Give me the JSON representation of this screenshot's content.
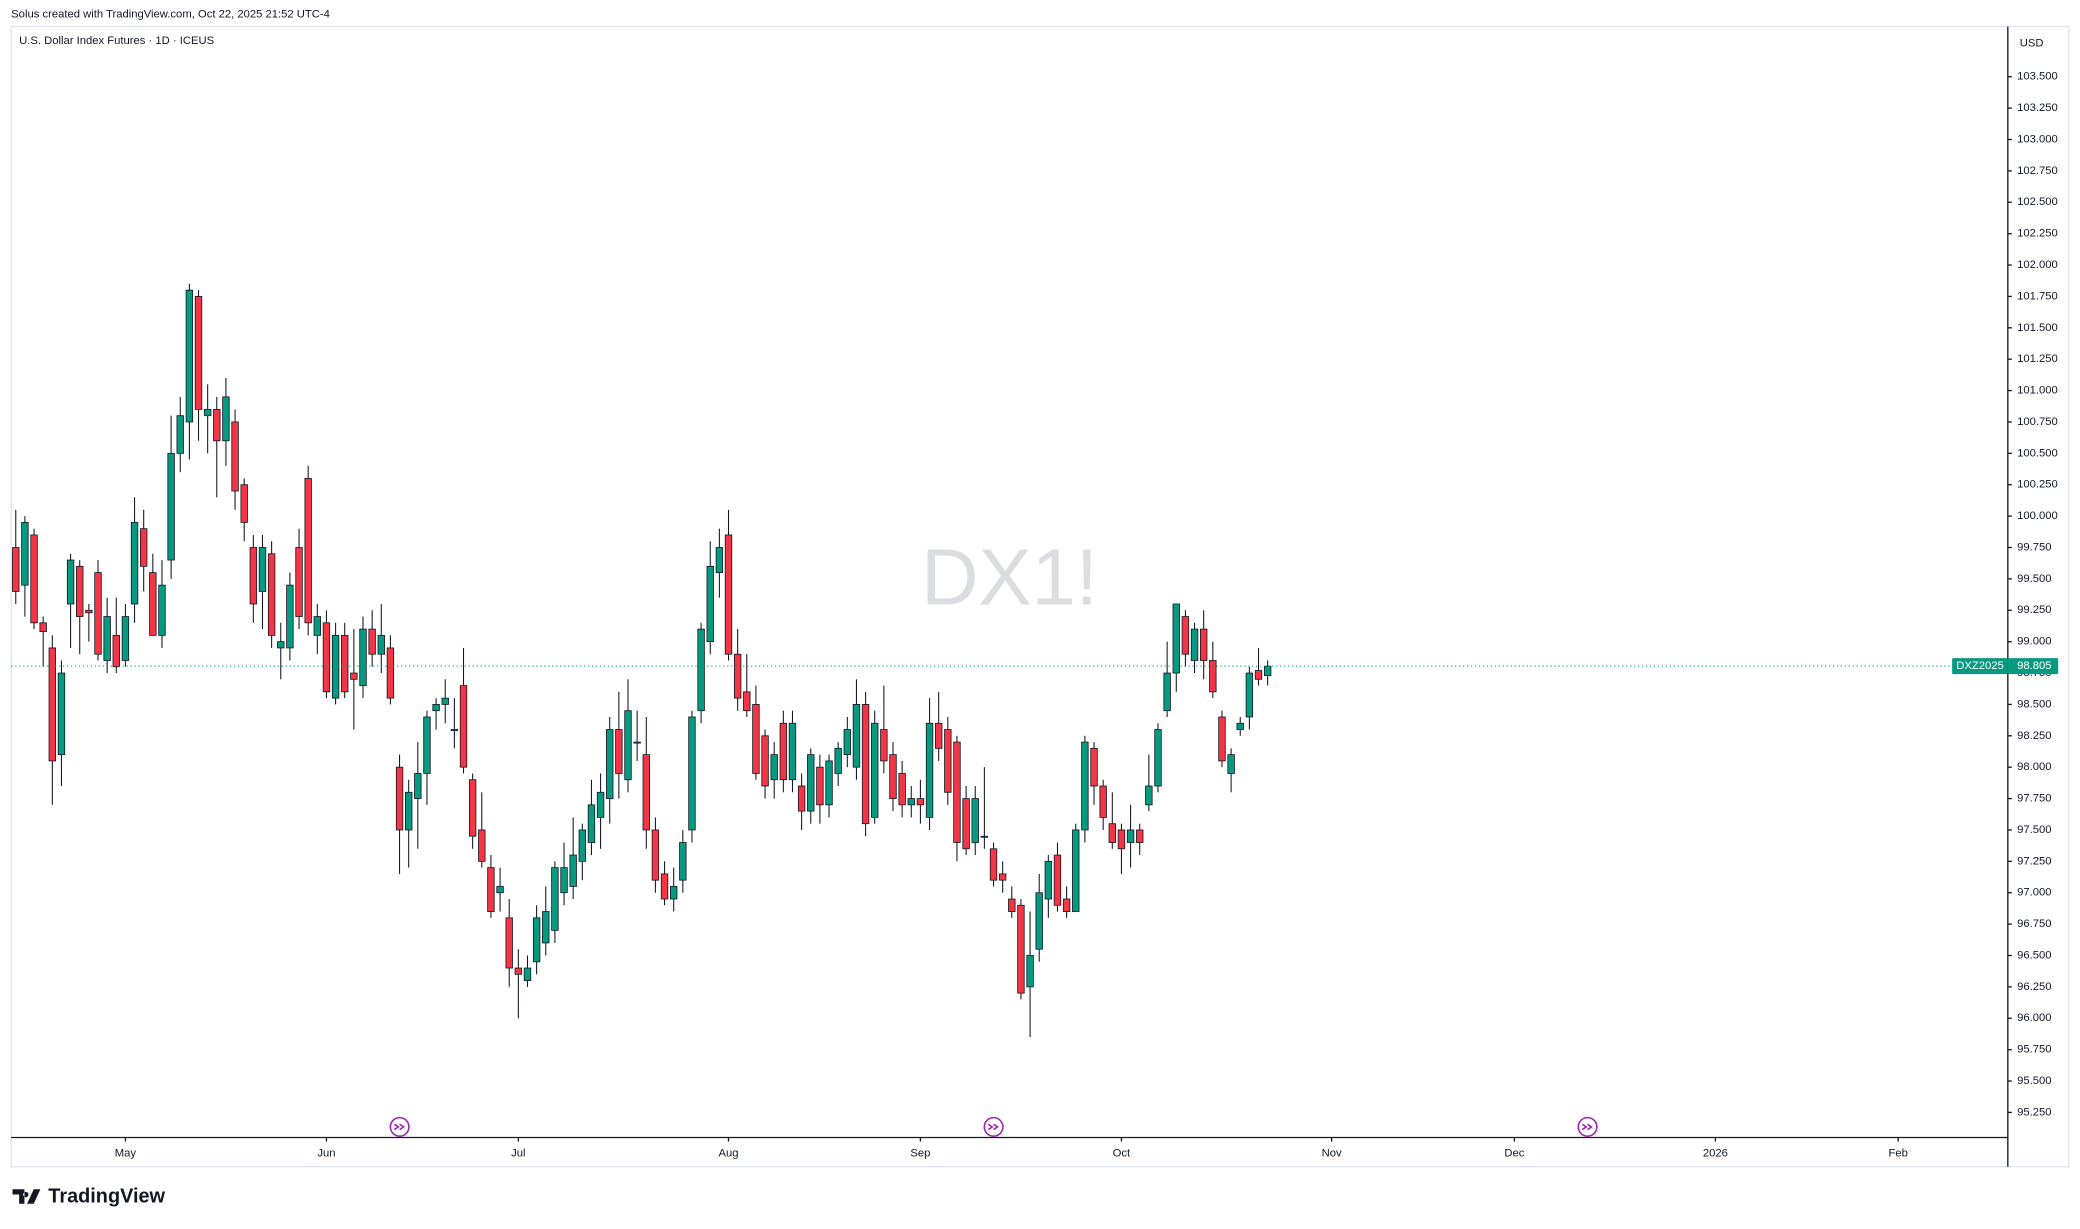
{
  "chart_data": {
    "type": "candlestick",
    "credit": "Solus created with TradingView.com, Oct 22, 2025 21:52 UTC-4",
    "title": "U.S. Dollar Index Futures · 1D · ICEUS",
    "watermark": "DX1!",
    "currency": "USD",
    "brand": "TradingView",
    "last_price_symbol": "DXZ2025",
    "last_price": 98.805,
    "up_color": "#089981",
    "down_color": "#f23645",
    "grid": false,
    "open": [
      99.75,
      99.45,
      99.85,
      99.15,
      98.95,
      98.1,
      99.3,
      99.6,
      99.25,
      99.55,
      98.85,
      99.05,
      98.85,
      99.3,
      99.9,
      99.55,
      99.05,
      99.65,
      100.5,
      100.75,
      101.75,
      100.8,
      100.85,
      100.6,
      100.75,
      100.25,
      99.75,
      99.4,
      99.7,
      98.95,
      98.95,
      99.75,
      100.3,
      99.05,
      99.15,
      98.55,
      99.05,
      98.75,
      98.65,
      99.1,
      98.9,
      98.95,
      98,
      97.5,
      97.75,
      97.95,
      98.45,
      98.5,
      98.3,
      98.65,
      97.9,
      97.5,
      97.2,
      97,
      96.8,
      96.4,
      96.3,
      96.45,
      96.6,
      96.7,
      97,
      97.05,
      97.25,
      97.4,
      97.6,
      97.75,
      98.3,
      97.9,
      98.2,
      98.1,
      97.5,
      97.15,
      96.95,
      97.1,
      97.5,
      98.45,
      99,
      99.55,
      99.85,
      98.9,
      98.6,
      98.5,
      98.25,
      97.9,
      98.35,
      97.9,
      97.85,
      97.65,
      98,
      97.7,
      97.95,
      98.1,
      98,
      98.5,
      97.6,
      98.3,
      98.1,
      97.95,
      97.7,
      97.75,
      97.6,
      98.35,
      98.3,
      98.2,
      97.75,
      97.4,
      97.45,
      97.35,
      97.15,
      96.95,
      96.9,
      96.25,
      96.55,
      96.95,
      97.3,
      96.95,
      96.85,
      97.5,
      98.15,
      97.85,
      97.55,
      97.5,
      97.4,
      97.5,
      97.7,
      97.85,
      98.45,
      98.75,
      99.2,
      98.85,
      99.1,
      98.85,
      98.4,
      97.95,
      98.3,
      98.4,
      98.77,
      98.73
    ],
    "high": [
      100.05,
      100,
      99.9,
      99.2,
      99.05,
      98.85,
      99.7,
      99.65,
      99.3,
      99.65,
      99.35,
      99.35,
      99.3,
      100.15,
      100.05,
      99.7,
      99.65,
      100.8,
      100.95,
      101.85,
      101.8,
      101.05,
      100.95,
      101.1,
      100.85,
      100.3,
      99.85,
      99.85,
      99.8,
      99.15,
      99.55,
      99.9,
      100.4,
      99.3,
      99.25,
      99.15,
      99.15,
      99.1,
      99.2,
      99.25,
      99.3,
      99.05,
      98.1,
      97.9,
      98.2,
      98.45,
      98.55,
      98.7,
      98.55,
      98.95,
      97.95,
      97.8,
      97.3,
      97.2,
      96.95,
      96.55,
      96.5,
      96.9,
      97.05,
      97.25,
      97.4,
      97.6,
      97.55,
      97.9,
      97.95,
      98.4,
      98.6,
      98.7,
      98.45,
      98.4,
      97.6,
      97.25,
      97.2,
      97.5,
      98.45,
      99.15,
      99.8,
      99.9,
      100.05,
      99.1,
      98.9,
      98.65,
      98.3,
      98.2,
      98.45,
      98.45,
      97.95,
      98.15,
      98.1,
      98.1,
      98.2,
      98.4,
      98.7,
      98.6,
      98.45,
      98.65,
      98.2,
      98.05,
      97.85,
      97.9,
      98.55,
      98.6,
      98.4,
      98.25,
      97.85,
      97.85,
      98,
      97.4,
      97.25,
      97.05,
      96.95,
      96.85,
      97.15,
      97.3,
      97.4,
      97.05,
      97.55,
      98.25,
      98.2,
      97.9,
      97.8,
      97.55,
      97.7,
      97.55,
      98.1,
      98.35,
      99,
      99.3,
      99.25,
      99.15,
      99.25,
      99,
      98.45,
      98.15,
      98.4,
      98.8,
      98.95,
      98.85
    ],
    "low": [
      99.3,
      99.2,
      99.1,
      98.8,
      97.7,
      97.85,
      98.95,
      98.9,
      99,
      98.85,
      98.75,
      98.75,
      98.8,
      99.15,
      99.4,
      99.05,
      98.95,
      99.5,
      100.35,
      100.45,
      100.6,
      100.5,
      100.15,
      100.4,
      100.05,
      99.8,
      99.15,
      99.1,
      98.95,
      98.7,
      98.85,
      99.1,
      99.05,
      98.9,
      98.55,
      98.5,
      98.55,
      98.3,
      98.55,
      98.8,
      98.75,
      98.5,
      97.15,
      97.2,
      97.35,
      97.7,
      98.3,
      98.35,
      98.15,
      97.95,
      97.35,
      97.2,
      96.8,
      96.85,
      96.25,
      96,
      96.25,
      96.35,
      96.5,
      96.6,
      96.9,
      96.95,
      97.1,
      97.3,
      97.35,
      97.55,
      97.75,
      97.8,
      98.05,
      97.35,
      97,
      96.9,
      96.85,
      97,
      97.4,
      98.35,
      98.9,
      99.35,
      98.85,
      98.45,
      98.4,
      97.9,
      97.75,
      97.75,
      97.8,
      97.8,
      97.5,
      97.55,
      97.55,
      97.6,
      97.85,
      98,
      97.9,
      97.45,
      97.55,
      97.95,
      97.65,
      97.6,
      97.6,
      97.55,
      97.5,
      98.05,
      97.7,
      97.25,
      97.3,
      97.3,
      97.35,
      97.05,
      97,
      96.8,
      96.15,
      95.85,
      96.45,
      96.8,
      96.85,
      96.8,
      96.85,
      97.4,
      97.7,
      97.5,
      97.35,
      97.15,
      97.2,
      97.3,
      97.65,
      97.8,
      98.4,
      98.6,
      98.8,
      98.75,
      98.7,
      98.55,
      98,
      97.8,
      98.25,
      98.3,
      98.65,
      98.65
    ],
    "close": [
      99.4,
      99.95,
      99.15,
      99.08,
      98.05,
      98.75,
      99.65,
      99.2,
      99.23,
      98.9,
      99.2,
      98.8,
      99.2,
      99.95,
      99.6,
      99.05,
      99.45,
      100.5,
      100.8,
      101.8,
      100.85,
      100.85,
      100.6,
      100.95,
      100.2,
      99.95,
      99.3,
      99.75,
      99.05,
      99,
      99.45,
      99.2,
      99.15,
      99.2,
      98.6,
      99.05,
      98.6,
      98.7,
      99.1,
      98.9,
      99.05,
      98.55,
      97.5,
      97.8,
      97.95,
      98.4,
      98.5,
      98.55,
      98.3,
      98,
      97.45,
      97.25,
      96.85,
      97.05,
      96.4,
      96.35,
      96.4,
      96.8,
      96.85,
      97.2,
      97.2,
      97.3,
      97.5,
      97.7,
      97.8,
      98.3,
      97.95,
      98.45,
      98.2,
      97.5,
      97.1,
      96.95,
      97.05,
      97.4,
      98.4,
      99.1,
      99.6,
      99.75,
      98.9,
      98.55,
      98.45,
      97.95,
      97.85,
      98.1,
      97.9,
      98.35,
      97.65,
      98.1,
      97.7,
      98.05,
      98.15,
      98.3,
      98.5,
      97.55,
      98.35,
      98.05,
      97.75,
      97.7,
      97.75,
      97.7,
      98.35,
      98.15,
      97.8,
      97.4,
      97.35,
      97.75,
      97.45,
      97.1,
      97.1,
      96.85,
      96.2,
      96.5,
      97,
      97.25,
      96.9,
      96.85,
      97.5,
      98.2,
      97.85,
      97.6,
      97.4,
      97.35,
      97.5,
      97.4,
      97.85,
      98.3,
      98.75,
      99.3,
      98.9,
      99.1,
      98.85,
      98.6,
      98.05,
      98.1,
      98.35,
      98.75,
      98.7,
      98.805
    ],
    "xlim": [
      -0.5,
      218
    ],
    "xticks": [
      {
        "value": 12,
        "label": "May"
      },
      {
        "value": 34,
        "label": "Jun"
      },
      {
        "value": 55,
        "label": "Jul"
      },
      {
        "value": 78,
        "label": "Aug"
      },
      {
        "value": 99,
        "label": "Sep"
      },
      {
        "value": 121,
        "label": "Oct"
      },
      {
        "value": 144,
        "label": "Nov"
      },
      {
        "value": 164,
        "label": "Dec"
      },
      {
        "value": 186,
        "label": "2026"
      },
      {
        "value": 206,
        "label": "Feb"
      }
    ],
    "ylim": [
      95.05,
      103.9
    ],
    "yticks": [
      {
        "value": 95.25,
        "label": "95.250"
      },
      {
        "value": 95.5,
        "label": "95.500"
      },
      {
        "value": 95.75,
        "label": "95.750"
      },
      {
        "value": 96,
        "label": "96.000"
      },
      {
        "value": 96.25,
        "label": "96.250"
      },
      {
        "value": 96.5,
        "label": "96.500"
      },
      {
        "value": 96.75,
        "label": "96.750"
      },
      {
        "value": 97,
        "label": "97.000"
      },
      {
        "value": 97.25,
        "label": "97.250"
      },
      {
        "value": 97.5,
        "label": "97.500"
      },
      {
        "value": 97.75,
        "label": "97.750"
      },
      {
        "value": 98,
        "label": "98.000"
      },
      {
        "value": 98.25,
        "label": "98.250"
      },
      {
        "value": 98.5,
        "label": "98.500"
      },
      {
        "value": 98.75,
        "label": "98.750"
      },
      {
        "value": 99,
        "label": "99.000"
      },
      {
        "value": 99.25,
        "label": "99.250"
      },
      {
        "value": 99.5,
        "label": "99.500"
      },
      {
        "value": 99.75,
        "label": "99.750"
      },
      {
        "value": 100,
        "label": "100.000"
      },
      {
        "value": 100.25,
        "label": "100.250"
      },
      {
        "value": 100.5,
        "label": "100.500"
      },
      {
        "value": 100.75,
        "label": "100.750"
      },
      {
        "value": 101,
        "label": "101.000"
      },
      {
        "value": 101.25,
        "label": "101.250"
      },
      {
        "value": 101.5,
        "label": "101.500"
      },
      {
        "value": 101.75,
        "label": "101.750"
      },
      {
        "value": 102,
        "label": "102.000"
      },
      {
        "value": 102.25,
        "label": "102.250"
      },
      {
        "value": 102.5,
        "label": "102.500"
      },
      {
        "value": 102.75,
        "label": "102.750"
      },
      {
        "value": 103,
        "label": "103.000"
      },
      {
        "value": 103.25,
        "label": "103.250"
      },
      {
        "value": 103.5,
        "label": "103.500"
      }
    ]
  }
}
